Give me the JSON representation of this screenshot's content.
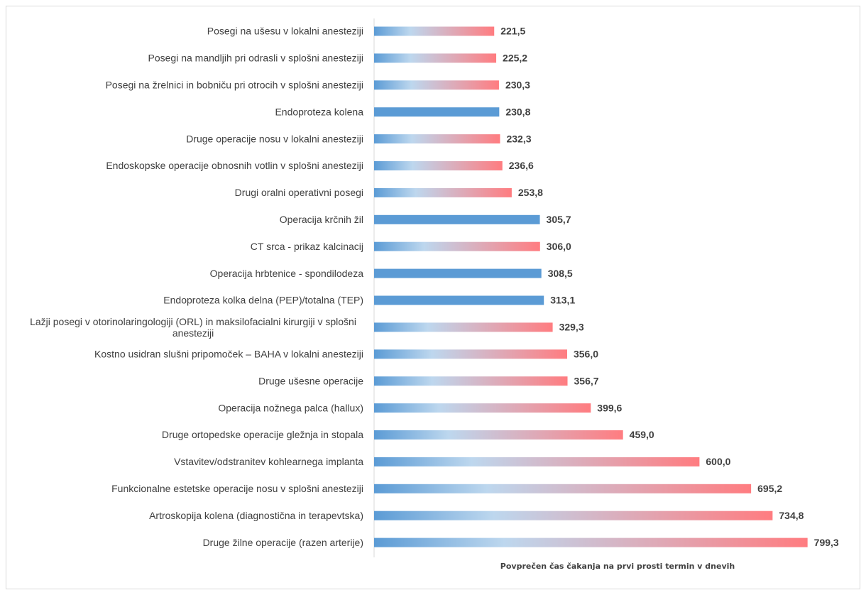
{
  "chart_data": {
    "type": "bar",
    "orientation": "horizontal",
    "title": "",
    "xlabel": "Povprečen čas čakanja na prvi prosti termin v dnevih",
    "ylabel": "",
    "xlim": [
      0,
      850
    ],
    "grid": false,
    "legend": "none",
    "categories": [
      "Posegi na ušesu v lokalni anesteziji",
      "Posegi na mandljih pri odrasli v splošni anesteziji",
      "Posegi na žrelnici in bobniču pri otrocih v splošni anesteziji",
      "Endoproteza kolena",
      "Druge operacije nosu v lokalni anesteziji",
      "Endoskopske operacije obnosnih votlin v splošni anesteziji",
      "Drugi oralni operativni posegi",
      "Operacija krčnih žil",
      "CT srca - prikaz kalcinacij",
      "Operacija hrbtenice - spondilodeza",
      "Endoproteza kolka delna (PEP)/totalna (TEP)",
      "Lažji posegi v otorinolaringologiji (ORL) in maksilofacialni kirurgiji v splošni anesteziji",
      "Kostno usidran slušni pripomoček – BAHA v lokalni anesteziji",
      "Druge ušesne operacije",
      "Operacija nožnega palca (hallux)",
      "Druge ortopedske operacije gležnja in stopala",
      "Vstavitev/odstranitev kohlearnega implanta",
      "Funkcionalne estetske operacije nosu v splošni anesteziji",
      "Artroskopija kolena (diagnostična in terapevtska)",
      "Druge žilne operacije (razen arterije)"
    ],
    "values": [
      221.5,
      225.2,
      230.3,
      230.8,
      232.3,
      236.6,
      253.8,
      305.7,
      306.0,
      308.5,
      313.1,
      329.3,
      356.0,
      356.7,
      399.6,
      459.0,
      600.0,
      695.2,
      734.8,
      799.3
    ],
    "value_labels": [
      "221,5",
      "225,2",
      "230,3",
      "230,8",
      "232,3",
      "236,6",
      "253,8",
      "305,7",
      "306,0",
      "308,5",
      "313,1",
      "329,3",
      "356,0",
      "356,7",
      "399,6",
      "459,0",
      "600,0",
      "695,2",
      "734,8",
      "799,3"
    ],
    "bar_style": [
      "gradient",
      "gradient",
      "gradient",
      "solid",
      "gradient",
      "gradient",
      "gradient",
      "solid",
      "gradient",
      "solid",
      "solid",
      "gradient",
      "gradient",
      "gradient",
      "gradient",
      "gradient",
      "gradient",
      "gradient",
      "gradient",
      "gradient"
    ],
    "colors": {
      "solid": "#5b9bd5",
      "gradient_start": "#5b9bd5",
      "gradient_mid": "#bdd7ee",
      "gradient_end": "#ff7c80",
      "axis": "#d9d9d9",
      "text": "#404040"
    }
  }
}
